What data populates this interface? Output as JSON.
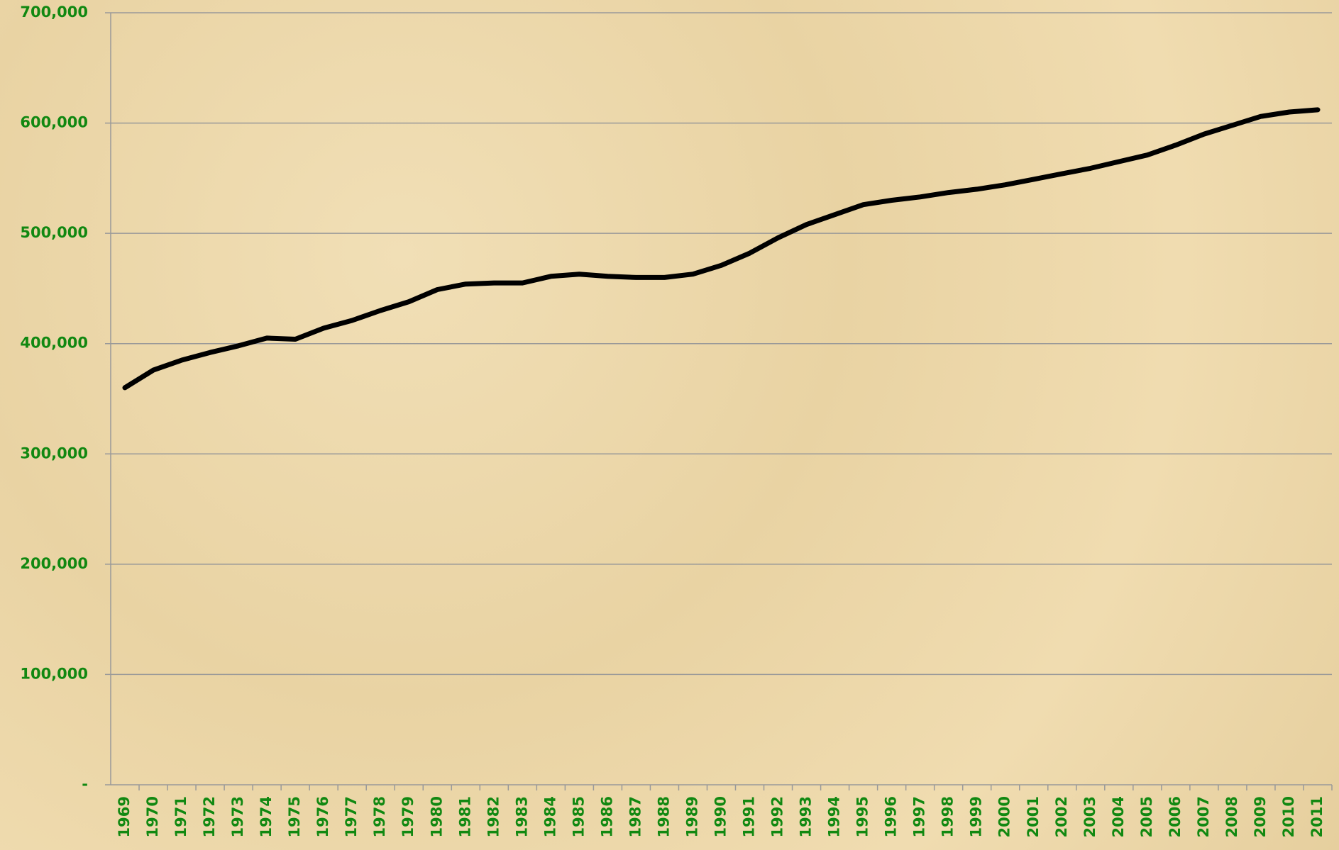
{
  "chart_data": {
    "type": "line",
    "categories": [
      "1969",
      "1970",
      "1971",
      "1972",
      "1973",
      "1974",
      "1975",
      "1976",
      "1977",
      "1978",
      "1979",
      "1980",
      "1981",
      "1982",
      "1983",
      "1984",
      "1985",
      "1986",
      "1987",
      "1988",
      "1989",
      "1990",
      "1991",
      "1992",
      "1993",
      "1994",
      "1995",
      "1996",
      "1997",
      "1998",
      "1999",
      "2000",
      "2001",
      "2002",
      "2003",
      "2004",
      "2005",
      "2006",
      "2007",
      "2008",
      "2009",
      "2010",
      "2011"
    ],
    "series": [
      {
        "color": "#000000",
        "values": [
          360000,
          376000,
          385000,
          392000,
          398000,
          405000,
          404000,
          414000,
          421000,
          430000,
          438000,
          449000,
          454000,
          455000,
          455000,
          461000,
          463000,
          461000,
          460000,
          460000,
          463000,
          471000,
          482000,
          496000,
          508000,
          517000,
          526000,
          530000,
          533000,
          537000,
          540000,
          544000,
          549000,
          554000,
          559000,
          565000,
          571000,
          580000,
          590000,
          598000,
          606000,
          610000,
          612000
        ]
      }
    ],
    "ylim": [
      0,
      700000
    ],
    "yticks": [
      {
        "value": 0,
        "label": "-"
      },
      {
        "value": 100000,
        "label": "100,000"
      },
      {
        "value": 200000,
        "label": "200,000"
      },
      {
        "value": 300000,
        "label": "300,000"
      },
      {
        "value": 400000,
        "label": "400,000"
      },
      {
        "value": 500000,
        "label": "500,000"
      },
      {
        "value": 600000,
        "label": "600,000"
      },
      {
        "value": 700000,
        "label": "700,000"
      }
    ],
    "grid": true
  }
}
